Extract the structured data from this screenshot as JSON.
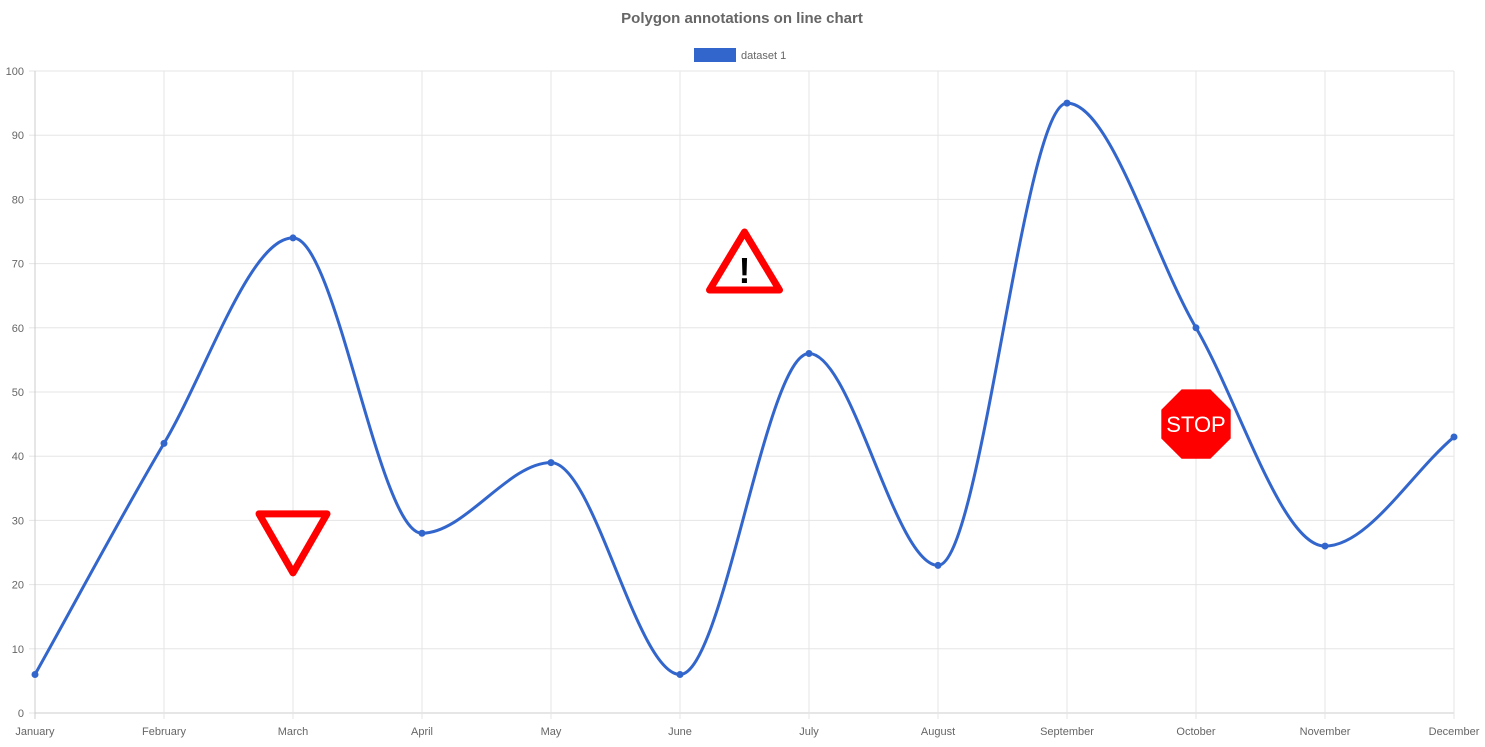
{
  "chart_data": {
    "type": "line",
    "title": "Polygon annotations on line chart",
    "categories": [
      "January",
      "February",
      "March",
      "April",
      "May",
      "June",
      "July",
      "August",
      "September",
      "October",
      "November",
      "December"
    ],
    "series": [
      {
        "name": "dataset 1",
        "values": [
          6,
          42,
          74,
          28,
          39,
          6,
          56,
          23,
          95,
          60,
          26,
          43
        ],
        "color": "#3366cc"
      }
    ],
    "ylim": [
      0,
      100
    ],
    "yticks": [
      0,
      10,
      20,
      30,
      40,
      50,
      60,
      70,
      80,
      90,
      100
    ],
    "grid": true,
    "legend_position": "top",
    "annotations": [
      {
        "kind": "inverted-triangle",
        "x_index": 2,
        "y": 29,
        "color": "#ff0000",
        "fill": "#ffffff",
        "icon": "yield-sign-icon"
      },
      {
        "kind": "warning-triangle",
        "x_index": 5.5,
        "y": 69,
        "color": "#ff0000",
        "fill": "#ffffff",
        "text": "!",
        "icon": "warning-sign-icon"
      },
      {
        "kind": "octagon",
        "x_index": 9,
        "y": 45,
        "color": "#ff0000",
        "fill": "#ff0000",
        "text": "STOP",
        "icon": "stop-sign-icon"
      }
    ]
  }
}
